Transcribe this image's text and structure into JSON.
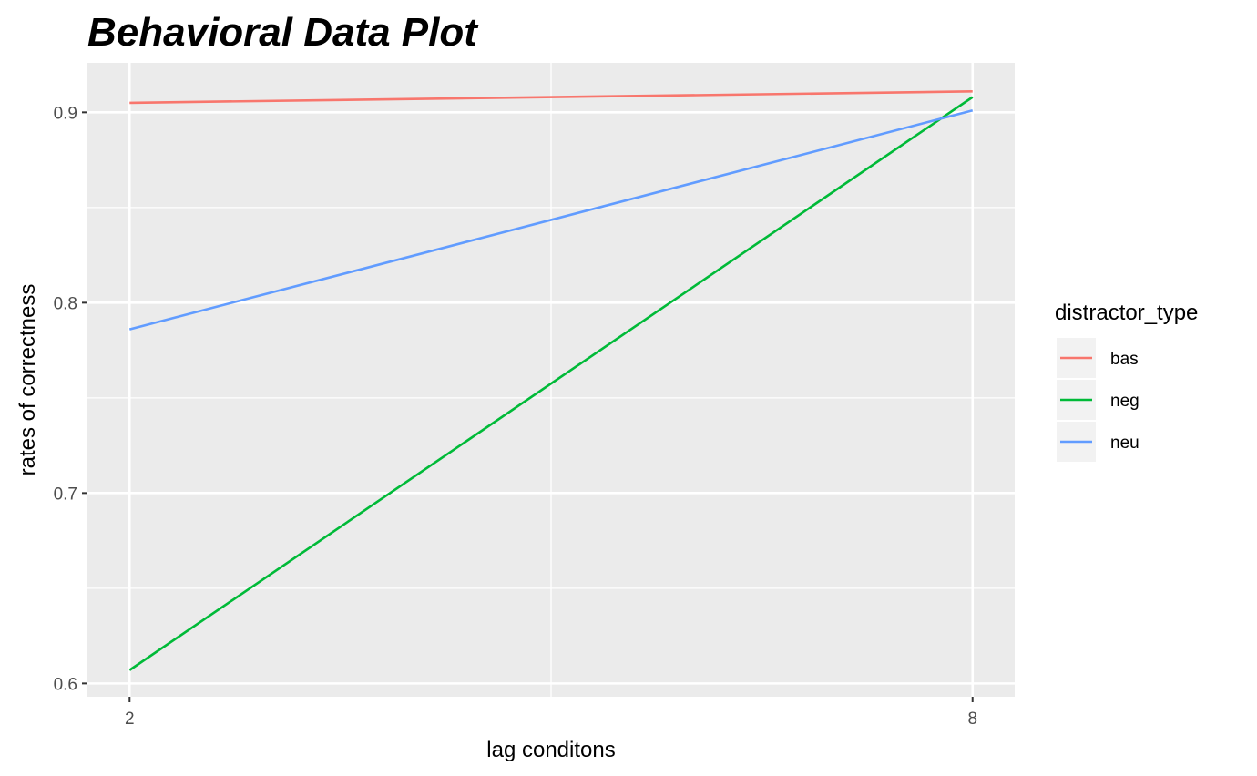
{
  "chart_data": {
    "type": "line",
    "title": "Behavioral Data Plot",
    "xlabel": "lag conditons",
    "ylabel": "rates of correctness",
    "x": [
      2,
      8
    ],
    "xticks": [
      "2",
      "8"
    ],
    "xlim": [
      1.7,
      8.3
    ],
    "yticks": [
      0.6,
      0.7,
      0.8,
      0.9
    ],
    "ytick_labels": [
      "0.6",
      "0.7",
      "0.8",
      "0.9"
    ],
    "ylim": [
      0.593,
      0.926
    ],
    "grid": true,
    "legend": {
      "title": "distractor_type",
      "position": "right"
    },
    "series": [
      {
        "name": "bas",
        "color": "#F8766D",
        "values": [
          0.905,
          0.911
        ]
      },
      {
        "name": "neg",
        "color": "#00BA38",
        "values": [
          0.607,
          0.908
        ]
      },
      {
        "name": "neu",
        "color": "#619CFF",
        "values": [
          0.786,
          0.901
        ]
      }
    ]
  }
}
